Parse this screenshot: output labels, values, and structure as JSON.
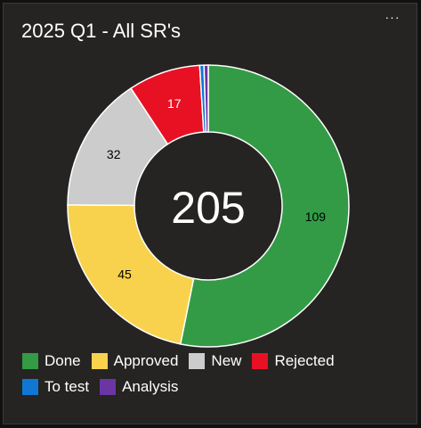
{
  "header": {
    "title": "2025 Q1 - All SR's",
    "more_label": "···"
  },
  "chart_data": {
    "type": "pie",
    "variant": "donut",
    "center_label": "205",
    "categories": [
      "Done",
      "Approved",
      "New",
      "Rejected",
      "To test",
      "Analysis"
    ],
    "values": [
      109,
      45,
      32,
      17,
      1,
      1
    ],
    "data_labels": [
      "109",
      "45",
      "32",
      "17",
      "",
      ""
    ],
    "colors": [
      "#339b46",
      "#f8d24c",
      "#cccccc",
      "#e81123",
      "#0f78d4",
      "#6b35a3"
    ],
    "label_colors": [
      "#000000",
      "#000000",
      "#000000",
      "#ffffff",
      "#ffffff",
      "#ffffff"
    ],
    "legend_position": "bottom-left"
  },
  "legend_rows": [
    [
      {
        "label": "Done",
        "color": "#339b46"
      },
      {
        "label": "Approved",
        "color": "#f8d24c"
      },
      {
        "label": "New",
        "color": "#cccccc"
      },
      {
        "label": "Rejected",
        "color": "#e81123"
      }
    ],
    [
      {
        "label": "To test",
        "color": "#0f78d4"
      },
      {
        "label": "Analysis",
        "color": "#6b35a3"
      }
    ]
  ]
}
